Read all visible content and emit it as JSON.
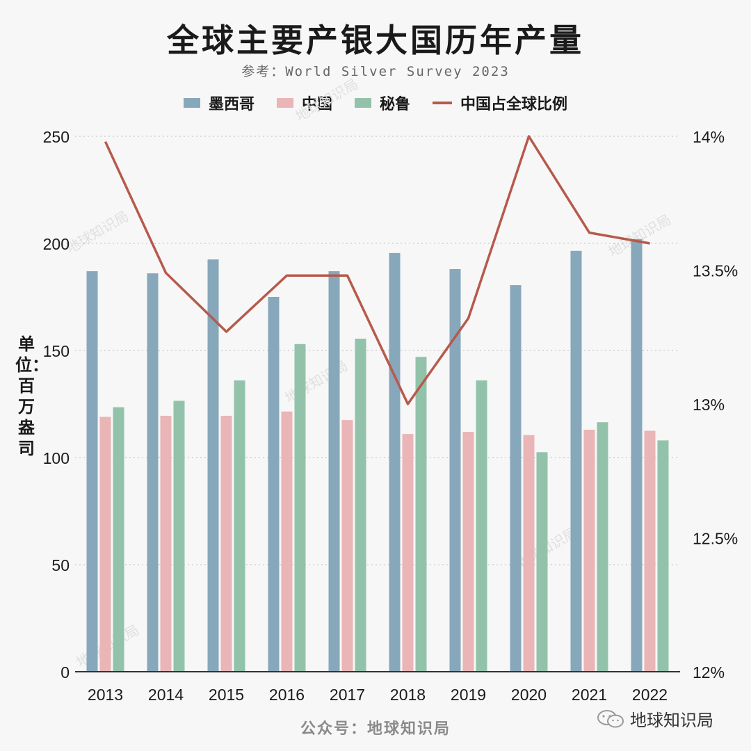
{
  "title": "全球主要产银大国历年产量",
  "subtitle": "参考：World Silver Survey 2023",
  "ylabel": "单位：百万盎司",
  "footer": "公众号：地球知识局",
  "brand": "地球知识局",
  "watermark": "地球知识局",
  "legend": [
    {
      "label": "墨西哥",
      "color": "#87a7bb",
      "kind": "bar"
    },
    {
      "label": "中国",
      "color": "#eab5b6",
      "kind": "bar"
    },
    {
      "label": "秘鲁",
      "color": "#92c3aa",
      "kind": "bar"
    },
    {
      "label": "中国占全球比例",
      "color": "#b65a4b",
      "kind": "line"
    }
  ],
  "chart_data": {
    "type": "bar",
    "categories": [
      "2013",
      "2014",
      "2015",
      "2016",
      "2017",
      "2018",
      "2019",
      "2020",
      "2021",
      "2022"
    ],
    "series": [
      {
        "name": "墨西哥",
        "axis": "left",
        "color": "#87a7bb",
        "values": [
          187,
          186,
          192.5,
          175,
          187,
          195.5,
          188,
          180.5,
          196.5,
          202
        ]
      },
      {
        "name": "中国",
        "axis": "left",
        "color": "#eab5b6",
        "values": [
          119,
          119.5,
          119.5,
          121.5,
          117.5,
          111,
          112,
          110.5,
          113,
          112.5
        ]
      },
      {
        "name": "秘鲁",
        "axis": "left",
        "color": "#92c3aa",
        "values": [
          123.5,
          126.5,
          136,
          153,
          155.5,
          147,
          136,
          102.5,
          116.5,
          108
        ]
      },
      {
        "name": "中国占全球比例",
        "axis": "right",
        "type": "line",
        "color": "#b65a4b",
        "values": [
          13.98,
          13.49,
          13.27,
          13.48,
          13.48,
          13.0,
          13.32,
          14.0,
          13.64,
          13.6
        ]
      }
    ],
    "left_axis": {
      "ticks": [
        0,
        50,
        100,
        150,
        200,
        250
      ],
      "ylim": [
        0,
        250
      ]
    },
    "right_axis": {
      "ticks": [
        "12%",
        "12.5%",
        "13%",
        "13.5%",
        "14%"
      ],
      "ylim": [
        12,
        14
      ]
    },
    "grid": true
  }
}
